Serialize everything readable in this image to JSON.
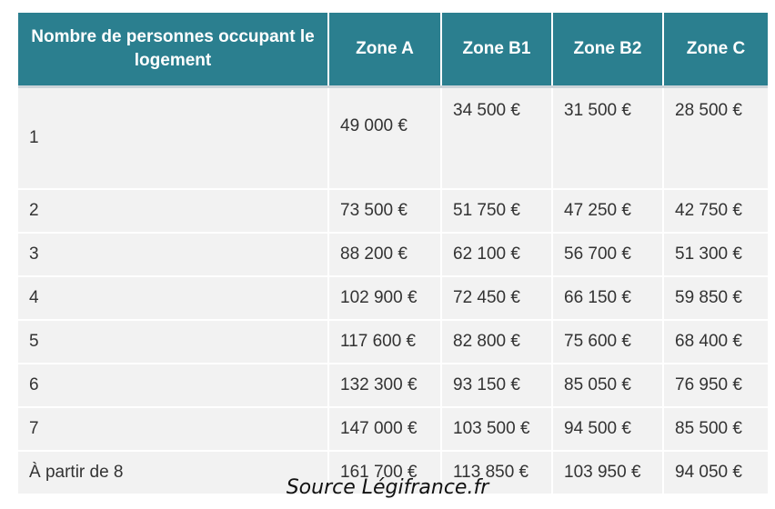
{
  "table": {
    "headers": [
      "Nombre de personnes occupant le logement",
      "Zone A",
      "Zone B1",
      "Zone B2",
      "Zone C"
    ],
    "rows": [
      [
        "1",
        "49 000 €",
        "34 500 €",
        "31 500 €",
        "28 500 €"
      ],
      [
        "2",
        "73 500 €",
        "51 750 €",
        "47 250 €",
        "42 750 €"
      ],
      [
        "3",
        "88 200 €",
        "62 100 €",
        "56 700 €",
        "51 300 €"
      ],
      [
        "4",
        "102 900 €",
        "72 450 €",
        "66 150 €",
        "59 850 €"
      ],
      [
        "5",
        "117 600 €",
        "82 800 €",
        "75 600 €",
        "68 400 €"
      ],
      [
        "6",
        "132 300 €",
        "93 150 €",
        "85 050 €",
        "76 950 €"
      ],
      [
        "7",
        "147 000 €",
        "103 500 €",
        "94 500 €",
        "85 500 €"
      ],
      [
        "À partir de 8",
        "161 700 €",
        "113 850 €",
        "103 950 €",
        "94 050 €"
      ]
    ]
  },
  "source": "Source Légifrance.fr",
  "colors": {
    "header_background": "#2b7f8f",
    "header_text": "#ffffff",
    "row_background": "#f2f2f2"
  }
}
